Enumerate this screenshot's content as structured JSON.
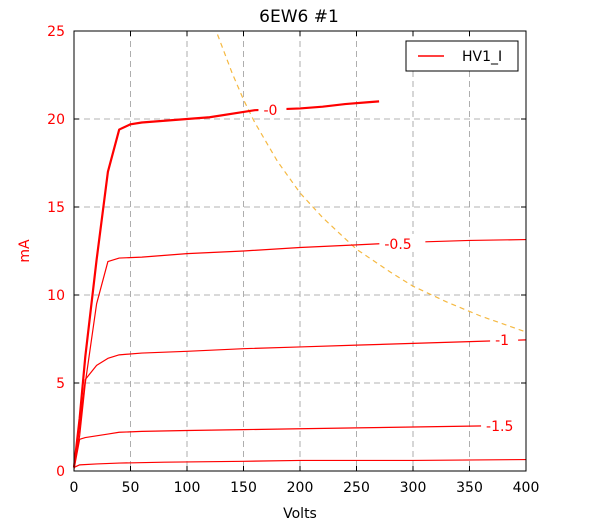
{
  "chart_data": {
    "type": "line",
    "title": "6EW6 #1",
    "xlabel": "Volts",
    "ylabel": "mA",
    "xlim": [
      0,
      400
    ],
    "ylim": [
      0,
      25
    ],
    "xticks": [
      0,
      50,
      100,
      150,
      200,
      250,
      300,
      350,
      400
    ],
    "yticks": [
      0,
      5,
      10,
      15,
      20,
      25
    ],
    "grid": true,
    "legend": {
      "placement": "top-right",
      "entries": [
        "HV1_I"
      ]
    },
    "colors": {
      "curves": "#ff0000",
      "power_limit": "#f5b942",
      "axis_y_labels": "#ff0000",
      "grid": "#9a9a9a"
    },
    "series": [
      {
        "label": "-0",
        "x": [
          0,
          5,
          10,
          20,
          30,
          40,
          50,
          60,
          80,
          100,
          120,
          150,
          160,
          180,
          200,
          220,
          240,
          260,
          270
        ],
        "y": [
          0.2,
          3.0,
          6.5,
          12.0,
          17.0,
          19.4,
          19.7,
          19.8,
          19.9,
          20.0,
          20.1,
          20.4,
          20.5,
          20.55,
          20.6,
          20.7,
          20.85,
          20.95,
          21.0
        ]
      },
      {
        "label": "-0.5",
        "x": [
          0,
          5,
          10,
          20,
          30,
          40,
          60,
          80,
          100,
          150,
          200,
          250,
          300,
          350,
          400
        ],
        "y": [
          0.2,
          2.0,
          5.0,
          9.5,
          11.9,
          12.1,
          12.15,
          12.25,
          12.35,
          12.5,
          12.7,
          12.85,
          13.0,
          13.1,
          13.15
        ]
      },
      {
        "label": "-1",
        "x": [
          0,
          5,
          10,
          20,
          30,
          40,
          60,
          80,
          100,
          150,
          200,
          250,
          300,
          350,
          400
        ],
        "y": [
          0.2,
          2.5,
          5.2,
          6.0,
          6.4,
          6.6,
          6.7,
          6.75,
          6.8,
          6.95,
          7.05,
          7.15,
          7.25,
          7.35,
          7.45
        ]
      },
      {
        "label": "-1.5",
        "x": [
          0,
          5,
          10,
          20,
          30,
          40,
          60,
          100,
          150,
          200,
          250,
          300,
          350,
          400
        ],
        "y": [
          0.1,
          1.8,
          1.9,
          2.0,
          2.1,
          2.2,
          2.25,
          2.3,
          2.35,
          2.4,
          2.45,
          2.5,
          2.55,
          2.6
        ]
      },
      {
        "label": "",
        "x": [
          0,
          5,
          20,
          40,
          80,
          150,
          200,
          300,
          400
        ],
        "y": [
          0.2,
          0.35,
          0.4,
          0.45,
          0.5,
          0.55,
          0.6,
          0.6,
          0.65
        ]
      }
    ],
    "power_limit_curve": {
      "x": [
        127,
        140,
        150,
        160,
        180,
        200,
        220,
        250,
        280,
        300,
        330,
        360,
        400
      ],
      "y": [
        24.8,
        22.6,
        21.1,
        19.8,
        17.6,
        15.8,
        14.4,
        12.6,
        11.3,
        10.5,
        9.6,
        8.8,
        7.9
      ]
    }
  }
}
